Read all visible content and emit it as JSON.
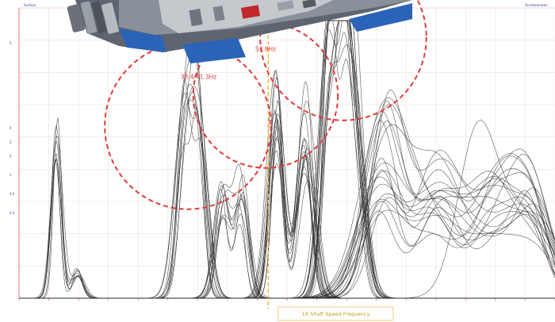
{
  "header": {
    "left_tag": "Surface",
    "right_tag": "Accelerometer"
  },
  "chart_data": {
    "type": "line",
    "xlim": [
      0,
      100
    ],
    "ylim": [
      0,
      100
    ],
    "grid": true,
    "reference_line": {
      "x": 46.5,
      "color": "#f0b030",
      "label": "1X Shaft Speed Frequency"
    },
    "annotations": [
      {
        "text": "38.4/41.3Hz",
        "cx": 31.5,
        "cy": 62,
        "r": 15.5,
        "color": "#e23a3a",
        "label_pos": [
          33.5,
          79
        ]
      },
      {
        "text": "53.8Hz",
        "cx": 46.0,
        "cy": 73,
        "r": 13.5,
        "color": "#e23a3a",
        "label_pos": [
          46.0,
          89
        ]
      },
      {
        "text": "",
        "cx": 60.5,
        "cy": 94,
        "r": 15.5,
        "color": "#e23a3a",
        "label_pos": null
      }
    ],
    "y_ticks": [
      "5",
      "4",
      "3",
      "2",
      "1",
      "0.5",
      "0.3"
    ],
    "x_tick_count": 18,
    "series_families": [
      {
        "name": "",
        "count": 8,
        "peaks": [
          [
            7,
            62,
            0.9
          ],
          [
            11,
            10,
            1.0
          ]
        ],
        "var": 0.25
      },
      {
        "name": "",
        "count": 10,
        "peaks": [
          [
            31,
            65,
            1.4
          ],
          [
            33.5,
            64,
            1.3
          ]
        ],
        "var": 0.35
      },
      {
        "name": "",
        "count": 10,
        "peaks": [
          [
            38,
            38,
            1.3
          ],
          [
            41.5,
            42,
            1.2
          ]
        ],
        "var": 0.45
      },
      {
        "name": "",
        "count": 14,
        "peaks": [
          [
            48,
            74,
            1.3
          ],
          [
            53.5,
            70,
            1.4
          ]
        ],
        "var": 0.4
      },
      {
        "name": "",
        "count": 14,
        "peaks": [
          [
            58,
            100,
            1.5
          ],
          [
            61,
            92,
            1.3
          ],
          [
            63,
            55,
            1.6
          ]
        ],
        "var": 0.35
      },
      {
        "name": "",
        "count": 20,
        "peaks": [
          [
            68,
            58,
            3.5
          ],
          [
            78,
            42,
            4.0
          ],
          [
            89,
            40,
            4.5
          ],
          [
            96,
            28,
            3.5
          ]
        ],
        "var": 0.55
      },
      {
        "name": "",
        "count": 1,
        "peaks": [
          [
            86,
            68,
            3.5
          ],
          [
            94,
            30,
            3
          ]
        ],
        "var": 0.1
      }
    ]
  },
  "overlay": {
    "object": "sensor-cutaway-image",
    "colors": {
      "body": "#5e6570",
      "blue": "#2a63b8",
      "cut": "#bfc3c8",
      "red": "#c0282c"
    }
  }
}
